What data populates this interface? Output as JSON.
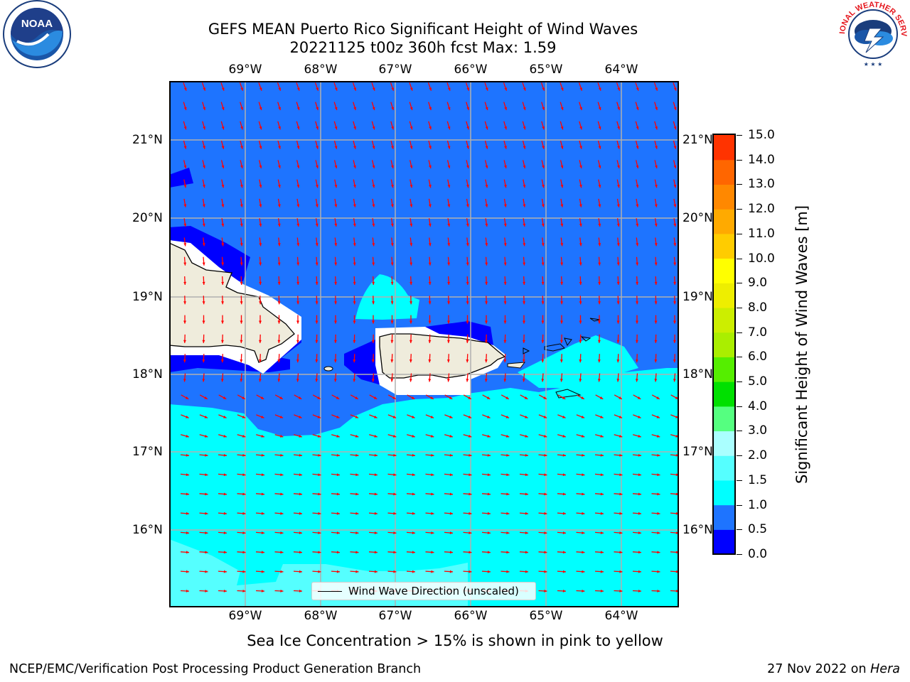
{
  "title": {
    "line1": "GEFS MEAN Puerto Rico Significant Height of Wind Waves",
    "line2": "20221125 t00z 360h fcst   Max: 1.59"
  },
  "logos": {
    "left": {
      "name": "noaa-logo",
      "center_text": "NOAA",
      "ring_text": "NATIONAL OCEANIC AND ATMOSPHERIC ADMINISTRATION · U.S. DEPARTMENT OF COMMERCE"
    },
    "right": {
      "name": "nws-logo",
      "ring_text": "NATIONAL WEATHER SERVICE"
    }
  },
  "map": {
    "lon_labels": [
      "69°W",
      "68°W",
      "67°W",
      "66°W",
      "65°W",
      "64°W"
    ],
    "lat_labels": [
      "21°N",
      "20°N",
      "19°N",
      "18°N",
      "17°N",
      "16°N"
    ],
    "lon_values": [
      -69,
      -68,
      -67,
      -66,
      -65,
      -64
    ],
    "lat_values": [
      21,
      20,
      19,
      18,
      17,
      16
    ],
    "extent": {
      "lon_min": -70.0,
      "lon_max": -63.25,
      "lat_min": 15.0,
      "lat_max": 21.75
    },
    "ocean_colors": {
      "lt05": "#0000ff",
      "b05_1": "#1e74ff",
      "b1_15": "#00ffff",
      "b15_2": "#55ffff",
      "land": "#efecdc",
      "nodata": "#ffffff"
    },
    "arrow_color": "#ff0000",
    "grid": true
  },
  "legend": {
    "label": "Wind Wave Direction (unscaled)"
  },
  "colorbar": {
    "title": "Significant Height of Wind Waves [m]",
    "ticks": [
      "0.0",
      "0.5",
      "1.0",
      "1.5",
      "2.0",
      "3.0",
      "4.0",
      "5.0",
      "6.0",
      "7.0",
      "8.0",
      "9.0",
      "10.0",
      "11.0",
      "12.0",
      "13.0",
      "14.0",
      "15.0"
    ],
    "colors": [
      "#0000ff",
      "#1e74ff",
      "#00ffff",
      "#55ffff",
      "#aaffff",
      "#55ff80",
      "#00e000",
      "#55ee00",
      "#aaee00",
      "#ccee00",
      "#eeee00",
      "#ffff00",
      "#ffcc00",
      "#ffaa00",
      "#ff8800",
      "#ff6600",
      "#ff3300"
    ]
  },
  "subnote": "Sea Ice Concentration > 15% is shown in pink to yellow",
  "footer": {
    "left": "NCEP/EMC/Verification Post Processing Product Generation Branch",
    "right_prefix": "27 Nov 2022 on ",
    "right_italic": "Hera"
  }
}
